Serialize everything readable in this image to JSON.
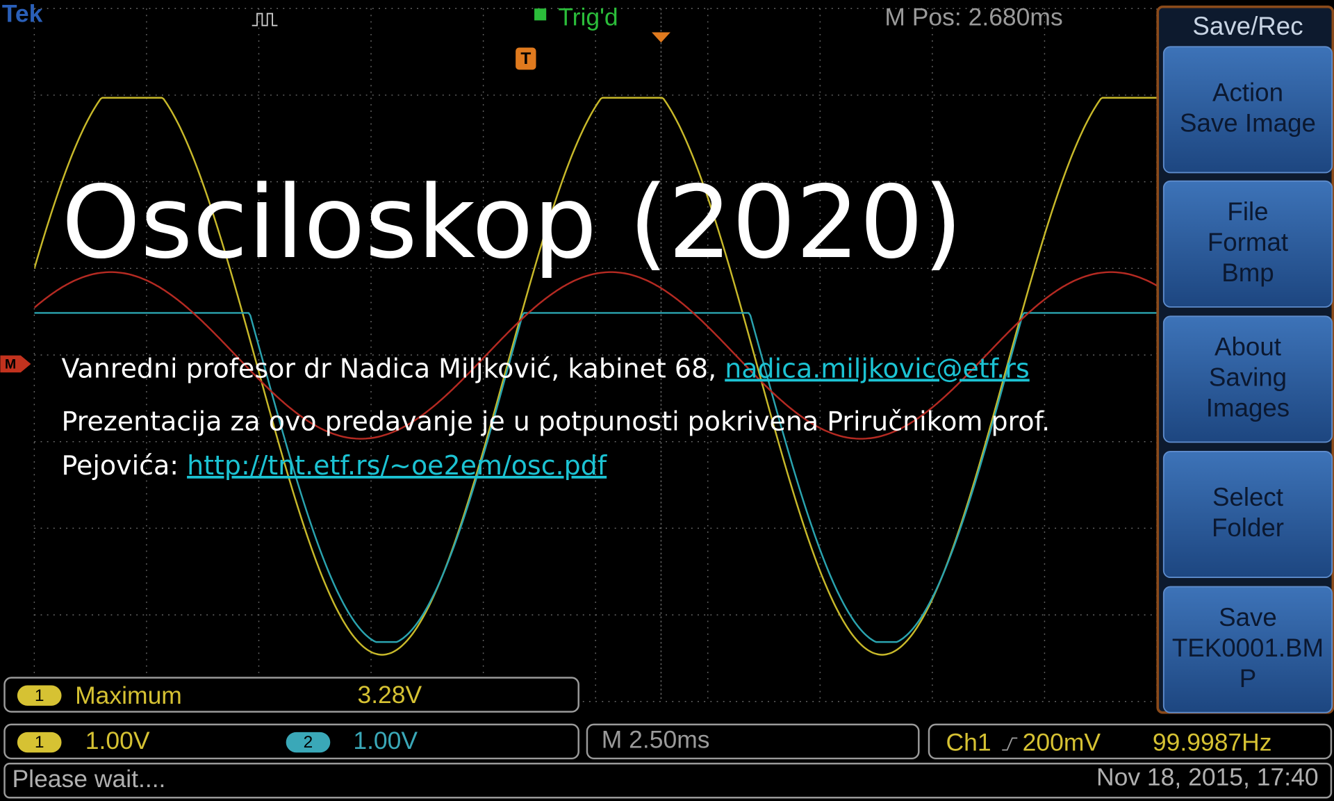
{
  "scope": {
    "brand": "Tek",
    "trigger_status": "Trig'd",
    "position": "M Pos: 2.680ms",
    "trigger_marker": "T",
    "math_marker": "M",
    "menu": {
      "title": "Save/Rec",
      "buttons": [
        [
          "Action",
          "Save Image"
        ],
        [
          "File",
          "Format",
          "Bmp"
        ],
        [
          "About",
          "Saving",
          "Images"
        ],
        [
          "Select",
          "Folder"
        ],
        [
          "Save",
          "TEK0001.BM",
          "P"
        ]
      ]
    },
    "measurement": {
      "channel": "1",
      "name": "Maximum",
      "value": "3.28V"
    },
    "channels": [
      {
        "number": "1",
        "scale": "1.00V"
      },
      {
        "number": "2",
        "scale": "1.00V"
      }
    ],
    "timebase": "M 2.50ms",
    "trigger": {
      "source": "Ch1",
      "level": "200mV",
      "frequency": "99.9987Hz"
    },
    "status": "Please wait....",
    "datetime": "Nov 18, 2015, 17:40"
  },
  "slide": {
    "title": "Osciloskop (2020)",
    "lines": [
      {
        "text": "Vanredni profesor dr Nadica Miljković, kabinet 68, ",
        "link": "nadica.miljkovic@etf.rs"
      },
      {
        "text": "Prezentacija za ovo predavanje je u potpunosti pokrivena Priručnikom prof."
      },
      {
        "text": "Pejovića: ",
        "link": "http://tnt.etf.rs/~oe2em/osc.pdf"
      }
    ]
  }
}
